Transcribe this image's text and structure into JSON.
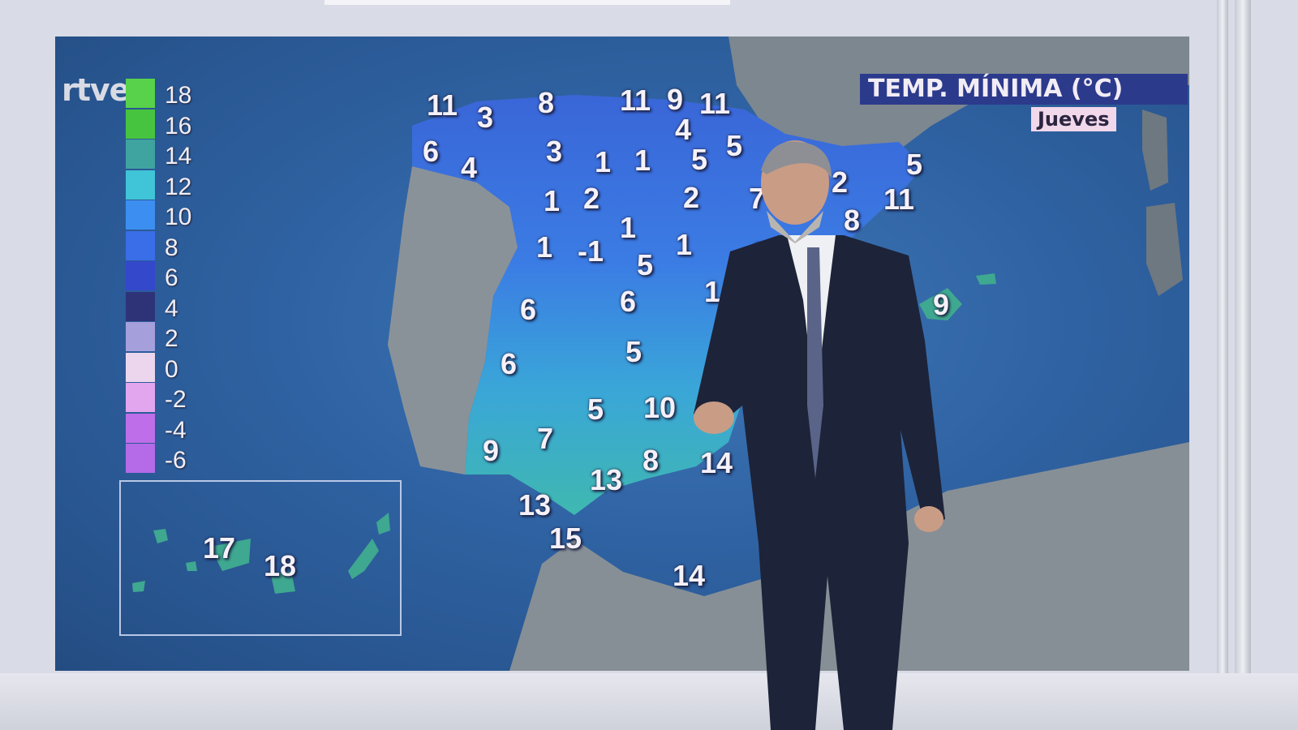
{
  "logo": "rtve",
  "title": "TEMP. MÍNIMA (°C)",
  "day": "Jueves",
  "legend": [
    {
      "label": "18",
      "color": "#58d24a"
    },
    {
      "label": "16",
      "color": "#47c43f"
    },
    {
      "label": "14",
      "color": "#3fa3a0"
    },
    {
      "label": "12",
      "color": "#40c4d8"
    },
    {
      "label": "10",
      "color": "#3c8ff0"
    },
    {
      "label": "8",
      "color": "#3a6de8"
    },
    {
      "label": "6",
      "color": "#3448cc"
    },
    {
      "label": "4",
      "color": "#2e3378"
    },
    {
      "label": "2",
      "color": "#a5a0dc"
    },
    {
      "label": "0",
      "color": "#ecd6ee"
    },
    {
      "label": "-2",
      "color": "#e2a6ee"
    },
    {
      "label": "-4",
      "color": "#be6ee8"
    },
    {
      "label": "-6",
      "color": "#b56ae8"
    }
  ],
  "temperatures": [
    "11",
    "3",
    "8",
    "11",
    "9",
    "11",
    "6",
    "4",
    "3",
    "1",
    "1",
    "4",
    "5",
    "5",
    "1",
    "2",
    "2",
    "7",
    "2",
    "5",
    "11",
    "8",
    "1",
    "1",
    "1",
    "-1",
    "5",
    "1",
    "6",
    "6",
    "1",
    "9",
    "5",
    "6",
    "5",
    "10",
    "7",
    "9",
    "8",
    "14",
    "13",
    "13",
    "15",
    "14"
  ],
  "canarias": [
    "17",
    "18"
  ]
}
